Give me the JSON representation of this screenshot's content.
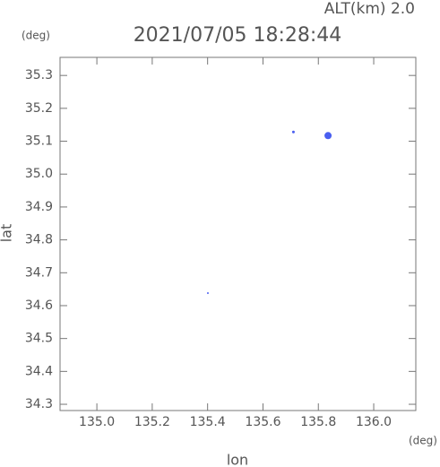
{
  "chart_data": {
    "type": "scatter",
    "title": "2021/07/05 18:28:44",
    "subtitle": "ALT(km) 2.0",
    "y_unit": "(deg)",
    "x_unit": "(deg)",
    "x_label": "lon",
    "y_label": "lat",
    "xlim": [
      134.867,
      136.152
    ],
    "ylim": [
      34.281,
      35.355
    ],
    "xticks": [
      {
        "value": 135.0,
        "label": "135.0"
      },
      135.2,
      135.4,
      135.6,
      135.8,
      {
        "value": 136.0,
        "label": "136.0"
      }
    ],
    "yticks": [
      34.3,
      34.4,
      34.5,
      34.6,
      34.7,
      34.8,
      34.9,
      {
        "value": 35.0,
        "label": "35.0"
      },
      35.1,
      35.2,
      35.3
    ],
    "series": [
      {
        "color": "#4a5ff0",
        "x": [
          135.71,
          135.835,
          135.401
        ],
        "values": [
          35.128,
          35.117,
          34.638
        ],
        "sizes": [
          1.5,
          4,
          1
        ]
      }
    ]
  }
}
